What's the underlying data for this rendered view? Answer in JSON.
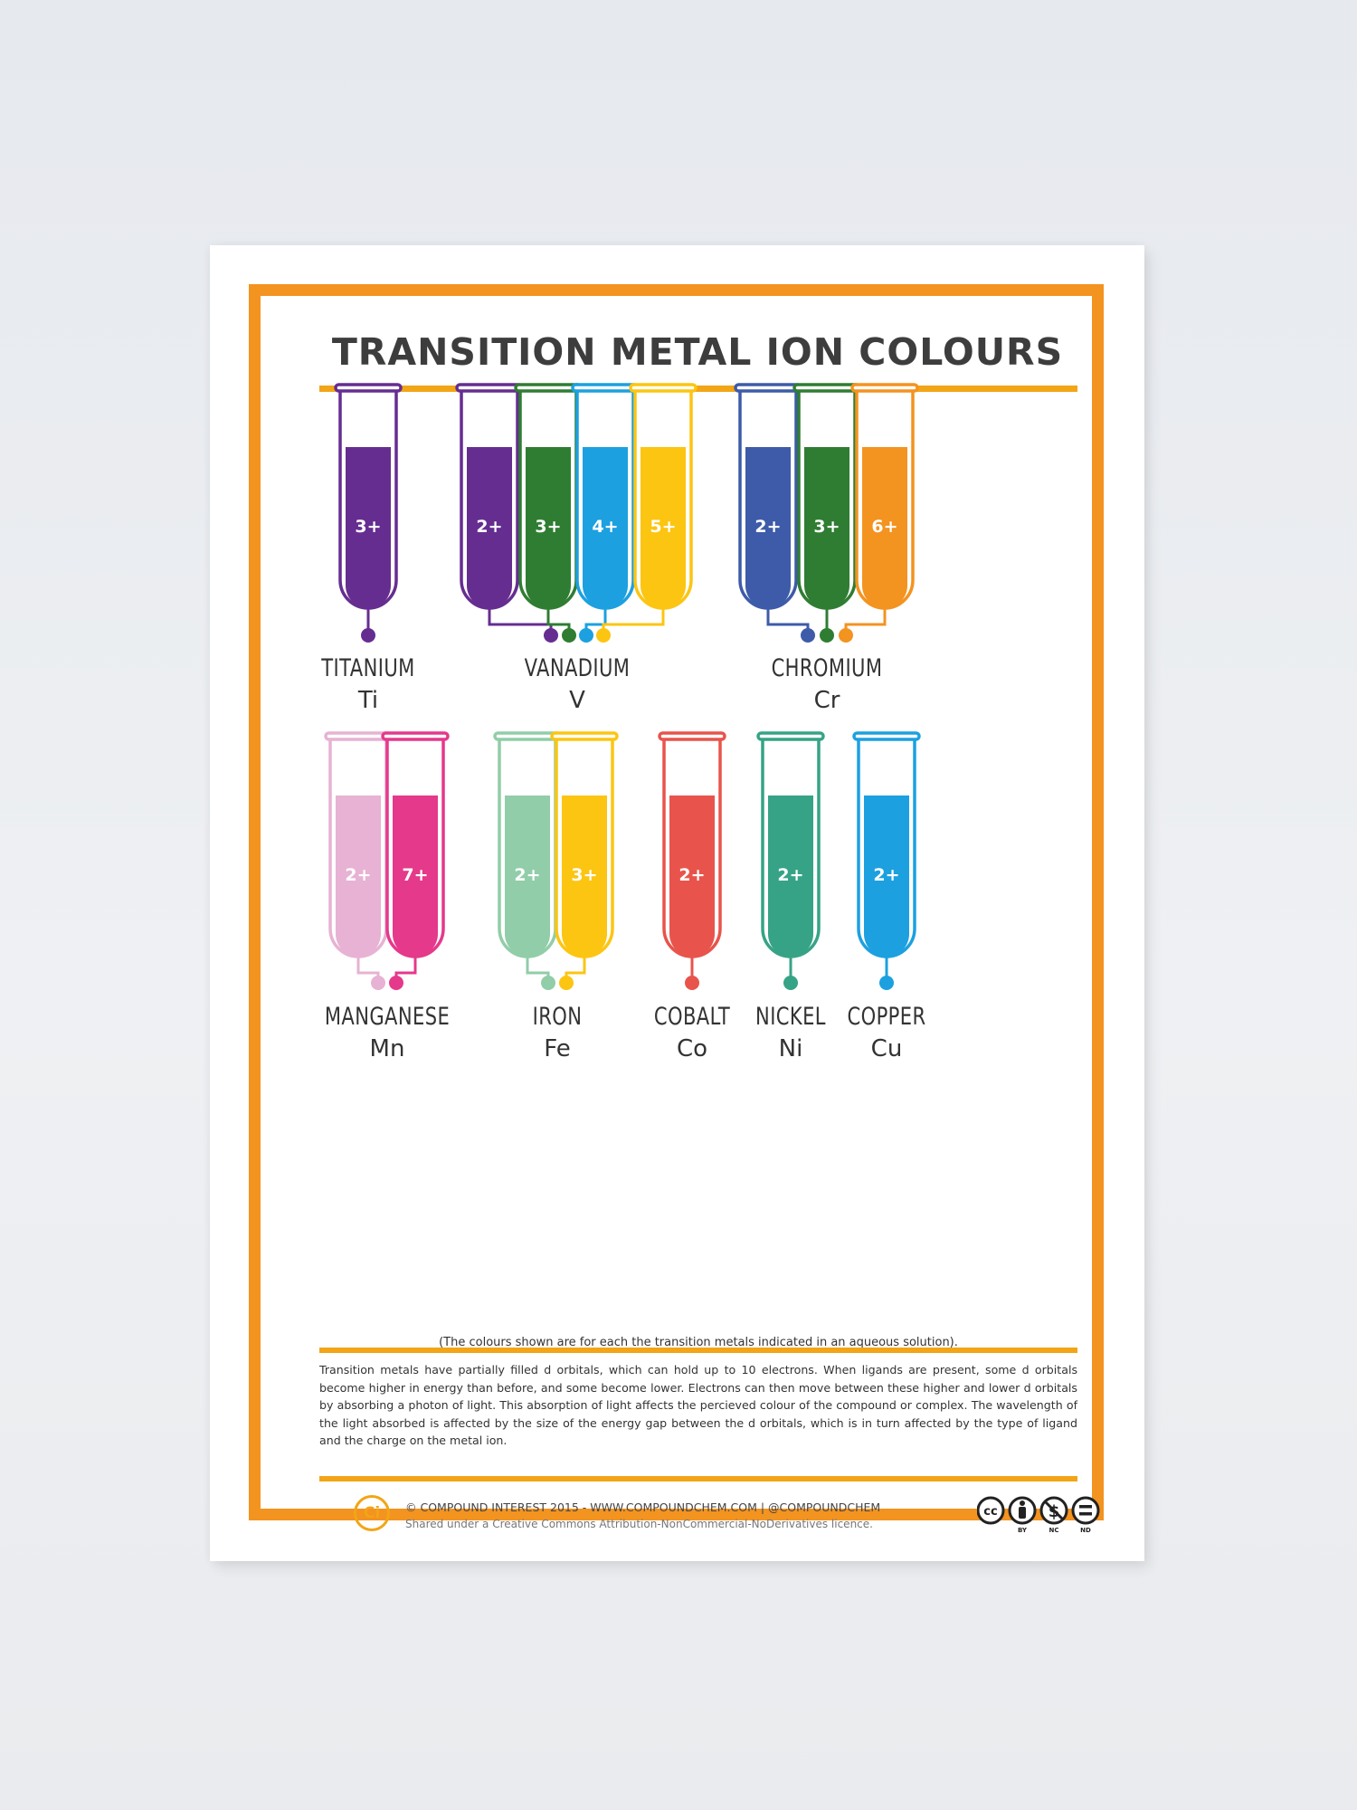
{
  "poster": {
    "title": "TRANSITION METAL ION COLOURS",
    "accent_color": "#f39320",
    "rule_color": "#f2a516",
    "elements": [
      {
        "name": "TITANIUM",
        "symbol": "Ti",
        "ions": [
          {
            "charge": "3+",
            "color": "#662d91"
          }
        ]
      },
      {
        "name": "VANADIUM",
        "symbol": "V",
        "ions": [
          {
            "charge": "2+",
            "color": "#662d91"
          },
          {
            "charge": "3+",
            "color": "#2f7d32"
          },
          {
            "charge": "4+",
            "color": "#1ca0e0"
          },
          {
            "charge": "5+",
            "color": "#fcc512"
          }
        ]
      },
      {
        "name": "CHROMIUM",
        "symbol": "Cr",
        "ions": [
          {
            "charge": "2+",
            "color": "#3e5ba9"
          },
          {
            "charge": "3+",
            "color": "#2f7d32"
          },
          {
            "charge": "6+",
            "color": "#f39320"
          }
        ]
      },
      {
        "name": "MANGANESE",
        "symbol": "Mn",
        "ions": [
          {
            "charge": "2+",
            "color": "#e7b2d3"
          },
          {
            "charge": "7+",
            "color": "#e5398b"
          }
        ]
      },
      {
        "name": "IRON",
        "symbol": "Fe",
        "ions": [
          {
            "charge": "2+",
            "color": "#91cda8"
          },
          {
            "charge": "3+",
            "color": "#fcc512"
          }
        ]
      },
      {
        "name": "COBALT",
        "symbol": "Co",
        "ions": [
          {
            "charge": "2+",
            "color": "#e8544b"
          }
        ]
      },
      {
        "name": "NICKEL",
        "symbol": "Ni",
        "ions": [
          {
            "charge": "2+",
            "color": "#36a386"
          }
        ]
      },
      {
        "name": "COPPER",
        "symbol": "Cu",
        "ions": [
          {
            "charge": "2+",
            "color": "#1ca0e0"
          }
        ]
      }
    ],
    "aqueous_note": "(The colours shown are for each the transition metals indicated in an aqueous solution).",
    "body_text": "Transition metals have partially filled d orbitals, which can hold up to 10 electrons. When ligands are present, some d orbitals become higher in energy than before, and some become lower. Electrons can then move between these higher and lower d orbitals by absorbing a photon of light. This absorption of light affects the percieved colour of the compound or complex. The wavelength of the light absorbed is affected by the size of the energy gap between the d orbitals, which is in turn affected by the type of ligand and the charge on the metal ion.",
    "footer": {
      "logo_text": "Ci",
      "credit": "© COMPOUND INTEREST 2015 - WWW.COMPOUNDCHEM.COM | @COMPOUNDCHEM",
      "license": "Shared under a Creative Commons Attribution-NonCommercial-NoDerivatives licence.",
      "cc_labels": [
        "BY",
        "NC",
        "ND"
      ]
    }
  }
}
